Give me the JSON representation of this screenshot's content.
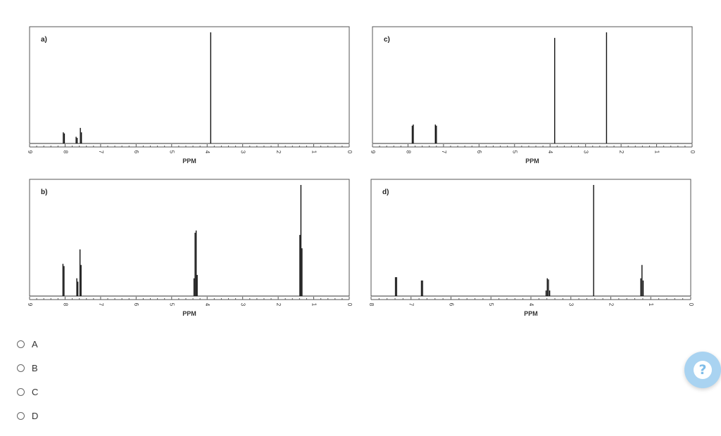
{
  "chart_data": [
    {
      "type": "line",
      "panel_label": "a)",
      "xlabel": "PPM",
      "xlim": [
        9,
        0
      ],
      "ticks": [
        "9",
        "8",
        "7",
        "6",
        "5",
        "4",
        "3",
        "2",
        "1",
        "0"
      ],
      "peaks": [
        {
          "x": 8.05,
          "h": 0.1
        },
        {
          "x": 8.02,
          "h": 0.09
        },
        {
          "x": 7.69,
          "h": 0.06
        },
        {
          "x": 7.66,
          "h": 0.05
        },
        {
          "x": 7.57,
          "h": 0.14
        },
        {
          "x": 7.54,
          "h": 0.1
        },
        {
          "x": 3.9,
          "h": 1.0
        }
      ]
    },
    {
      "type": "line",
      "panel_label": "b)",
      "xlabel": "PPM",
      "xlim": [
        9,
        0
      ],
      "ticks": [
        "9",
        "8",
        "7",
        "6",
        "5",
        "4",
        "3",
        "2",
        "1",
        "0"
      ],
      "peaks": [
        {
          "x": 8.06,
          "h": 0.29
        },
        {
          "x": 8.03,
          "h": 0.27
        },
        {
          "x": 7.67,
          "h": 0.16
        },
        {
          "x": 7.64,
          "h": 0.13
        },
        {
          "x": 7.58,
          "h": 0.42
        },
        {
          "x": 7.55,
          "h": 0.28
        },
        {
          "x": 4.37,
          "h": 0.16
        },
        {
          "x": 4.34,
          "h": 0.57
        },
        {
          "x": 4.31,
          "h": 0.59
        },
        {
          "x": 4.28,
          "h": 0.19
        },
        {
          "x": 1.39,
          "h": 0.55
        },
        {
          "x": 1.36,
          "h": 1.0
        },
        {
          "x": 1.33,
          "h": 0.43
        }
      ]
    },
    {
      "type": "line",
      "panel_label": "c)",
      "xlabel": "PPM",
      "xlim": [
        9,
        0
      ],
      "ticks": [
        "9",
        "8",
        "7",
        "6",
        "5",
        "4",
        "3",
        "2",
        "1",
        "0"
      ],
      "peaks": [
        {
          "x": 7.88,
          "h": 0.16
        },
        {
          "x": 7.85,
          "h": 0.17
        },
        {
          "x": 7.23,
          "h": 0.17
        },
        {
          "x": 7.2,
          "h": 0.16
        },
        {
          "x": 3.87,
          "h": 0.95
        },
        {
          "x": 2.41,
          "h": 1.0
        }
      ]
    },
    {
      "type": "line",
      "panel_label": "d)",
      "xlabel": "PPM",
      "xlim": [
        8,
        0
      ],
      "ticks": [
        "8",
        "7",
        "6",
        "5",
        "4",
        "3",
        "2",
        "1",
        "0"
      ],
      "peaks": [
        {
          "x": 7.39,
          "h": 0.17
        },
        {
          "x": 7.36,
          "h": 0.17
        },
        {
          "x": 6.74,
          "h": 0.14
        },
        {
          "x": 6.71,
          "h": 0.14
        },
        {
          "x": 3.62,
          "h": 0.05
        },
        {
          "x": 3.59,
          "h": 0.16
        },
        {
          "x": 3.56,
          "h": 0.15
        },
        {
          "x": 3.53,
          "h": 0.05
        },
        {
          "x": 2.43,
          "h": 1.0
        },
        {
          "x": 1.25,
          "h": 0.16
        },
        {
          "x": 1.22,
          "h": 0.28
        },
        {
          "x": 1.19,
          "h": 0.14
        }
      ]
    }
  ],
  "options": [
    {
      "label": "A"
    },
    {
      "label": "B"
    },
    {
      "label": "C"
    },
    {
      "label": "D"
    }
  ],
  "icons": {
    "help": "question-circle-icon"
  },
  "help_glyph": "?",
  "colors": {
    "peak": "#111111",
    "frame": "#555555",
    "help_bg": "#a9d3f1"
  }
}
